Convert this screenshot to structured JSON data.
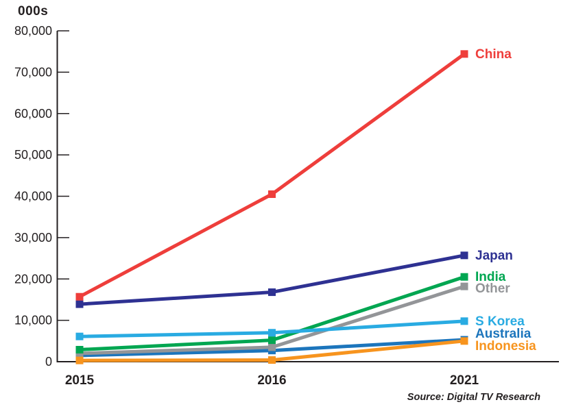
{
  "chart_data": {
    "type": "line",
    "ylabel": "000s",
    "source": "Source: Digital TV Research",
    "categories": [
      "2015",
      "2016",
      "2021"
    ],
    "series": [
      {
        "name": "China",
        "color": "#EE3E3B",
        "values": [
          15700,
          40500,
          74400
        ]
      },
      {
        "name": "Japan",
        "color": "#2E3192",
        "values": [
          13900,
          16800,
          25700
        ]
      },
      {
        "name": "India",
        "color": "#00A651",
        "values": [
          2900,
          5200,
          20500
        ]
      },
      {
        "name": "Other",
        "color": "#939598",
        "values": [
          2000,
          3500,
          18200
        ],
        "label_dy": 3
      },
      {
        "name": "S Korea",
        "color": "#29ABE2",
        "values": [
          6100,
          7000,
          9800
        ]
      },
      {
        "name": "Australia",
        "color": "#1C75BC",
        "values": [
          1500,
          2700,
          5300
        ],
        "label_dy": -9
      },
      {
        "name": "Indonesia",
        "color": "#F7941E",
        "values": [
          300,
          400,
          5000
        ],
        "label_dy": 7
      }
    ],
    "ylim": [
      0,
      80000
    ],
    "ytick_step": 10000,
    "ytick_labels": [
      "0",
      "10,000",
      "20,000",
      "30,000",
      "40,000",
      "50,000",
      "60,000",
      "70,000",
      "80,000"
    ],
    "grid": false,
    "legend_position": "right-of-last-point",
    "draw_order": [
      5,
      3,
      2,
      4,
      1,
      0,
      6
    ]
  },
  "colors": {
    "axis": "#231F20",
    "text": "#231F20",
    "background": "#FFFFFF"
  }
}
